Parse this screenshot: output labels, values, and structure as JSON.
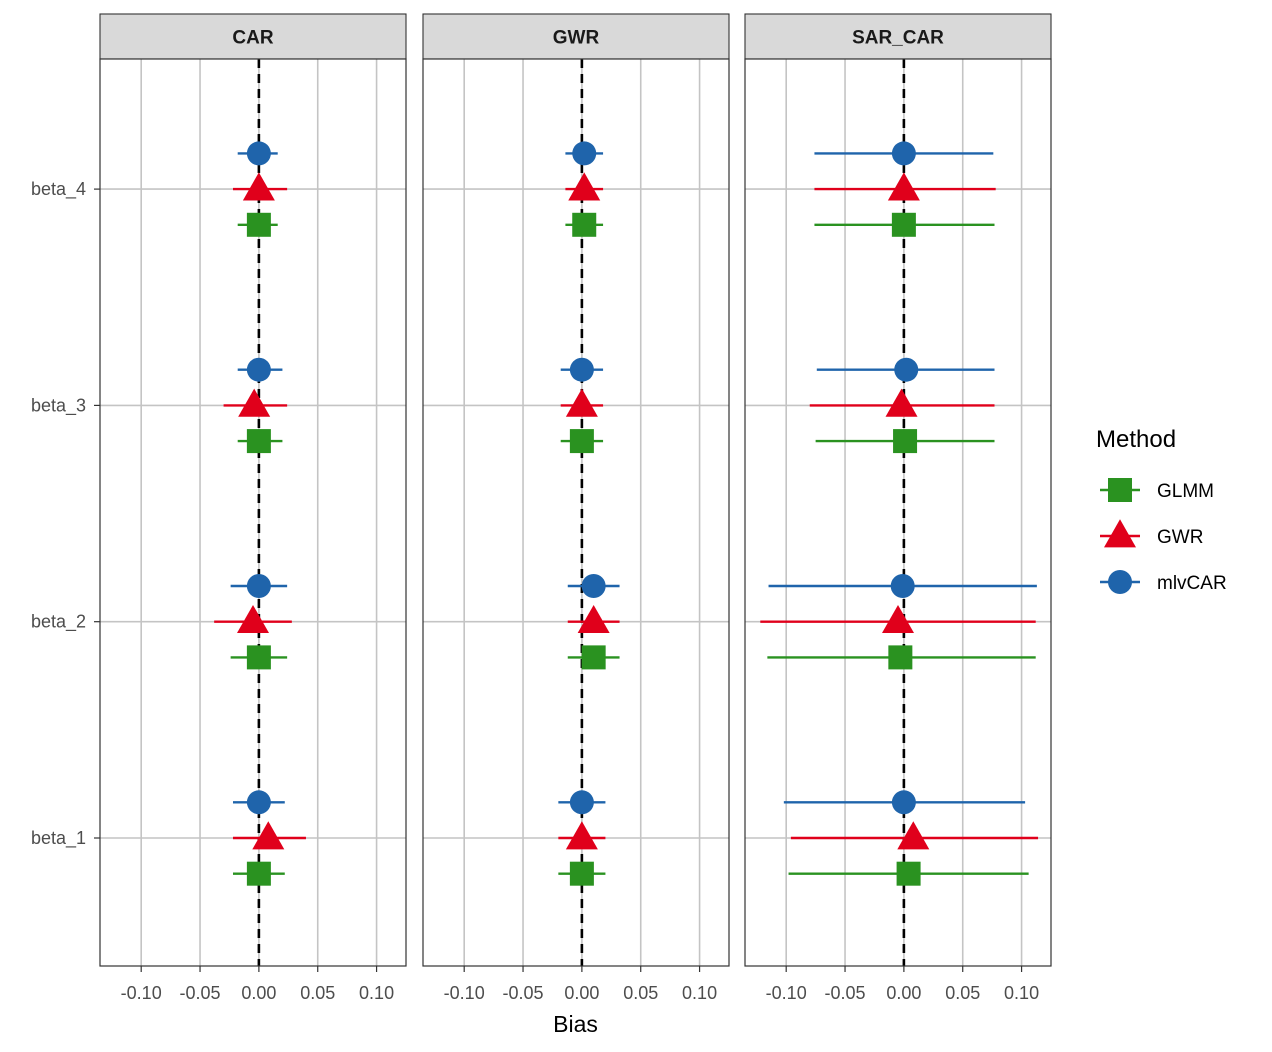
{
  "chart_data": {
    "type": "scatter",
    "subtype": "point-range (forest) plot, faceted",
    "xlabel": "Bias",
    "ylabel": "",
    "xlim": [
      -0.135,
      0.125
    ],
    "x_ticks": [
      -0.1,
      -0.05,
      0.0,
      0.05,
      0.1
    ],
    "x_tick_labels": [
      "-0.10",
      "-0.05",
      "0.00",
      "0.05",
      "0.10"
    ],
    "categories": [
      "beta_1",
      "beta_2",
      "beta_3",
      "beta_4"
    ],
    "reference_line": {
      "x": 0,
      "style": "dashed"
    },
    "grid": true,
    "legend": {
      "title": "Method",
      "placement": "right",
      "entries": [
        {
          "name": "GLMM",
          "shape": "square",
          "color": "#2a9220"
        },
        {
          "name": "GWR",
          "shape": "triangle",
          "color": "#e0001b"
        },
        {
          "name": "mlvCAR",
          "shape": "circle",
          "color": "#1f64ab"
        }
      ]
    },
    "panels": [
      {
        "strip": "CAR",
        "series": [
          {
            "name": "GLMM",
            "estimates": [
              0.0,
              0.0,
              0.0,
              0.0
            ],
            "lower": [
              -0.022,
              -0.024,
              -0.018,
              -0.018
            ],
            "upper": [
              0.022,
              0.024,
              0.02,
              0.016
            ]
          },
          {
            "name": "GWR",
            "estimates": [
              0.008,
              -0.005,
              -0.004,
              0.0
            ],
            "lower": [
              -0.022,
              -0.038,
              -0.03,
              -0.022
            ],
            "upper": [
              0.04,
              0.028,
              0.024,
              0.024
            ]
          },
          {
            "name": "mlvCAR",
            "estimates": [
              0.0,
              0.0,
              0.0,
              0.0
            ],
            "lower": [
              -0.022,
              -0.024,
              -0.018,
              -0.018
            ],
            "upper": [
              0.022,
              0.024,
              0.02,
              0.016
            ]
          }
        ]
      },
      {
        "strip": "GWR",
        "series": [
          {
            "name": "GLMM",
            "estimates": [
              0.0,
              0.01,
              0.0,
              0.002
            ],
            "lower": [
              -0.02,
              -0.012,
              -0.018,
              -0.014
            ],
            "upper": [
              0.02,
              0.032,
              0.018,
              0.018
            ]
          },
          {
            "name": "GWR",
            "estimates": [
              0.0,
              0.01,
              0.0,
              0.002
            ],
            "lower": [
              -0.02,
              -0.012,
              -0.018,
              -0.014
            ],
            "upper": [
              0.02,
              0.032,
              0.018,
              0.018
            ]
          },
          {
            "name": "mlvCAR",
            "estimates": [
              0.0,
              0.01,
              0.0,
              0.002
            ],
            "lower": [
              -0.02,
              -0.012,
              -0.018,
              -0.014
            ],
            "upper": [
              0.02,
              0.032,
              0.018,
              0.018
            ]
          }
        ]
      },
      {
        "strip": "SAR_CAR",
        "series": [
          {
            "name": "GLMM",
            "estimates": [
              0.004,
              -0.003,
              0.001,
              0.0
            ],
            "lower": [
              -0.098,
              -0.116,
              -0.075,
              -0.076
            ],
            "upper": [
              0.106,
              0.112,
              0.077,
              0.077
            ]
          },
          {
            "name": "GWR",
            "estimates": [
              0.008,
              -0.005,
              -0.002,
              0.0
            ],
            "lower": [
              -0.096,
              -0.122,
              -0.08,
              -0.076
            ],
            "upper": [
              0.114,
              0.112,
              0.077,
              0.078
            ]
          },
          {
            "name": "mlvCAR",
            "estimates": [
              0.0,
              -0.001,
              0.002,
              0.0
            ],
            "lower": [
              -0.102,
              -0.115,
              -0.074,
              -0.076
            ],
            "upper": [
              0.103,
              0.113,
              0.077,
              0.076
            ]
          }
        ]
      }
    ]
  }
}
